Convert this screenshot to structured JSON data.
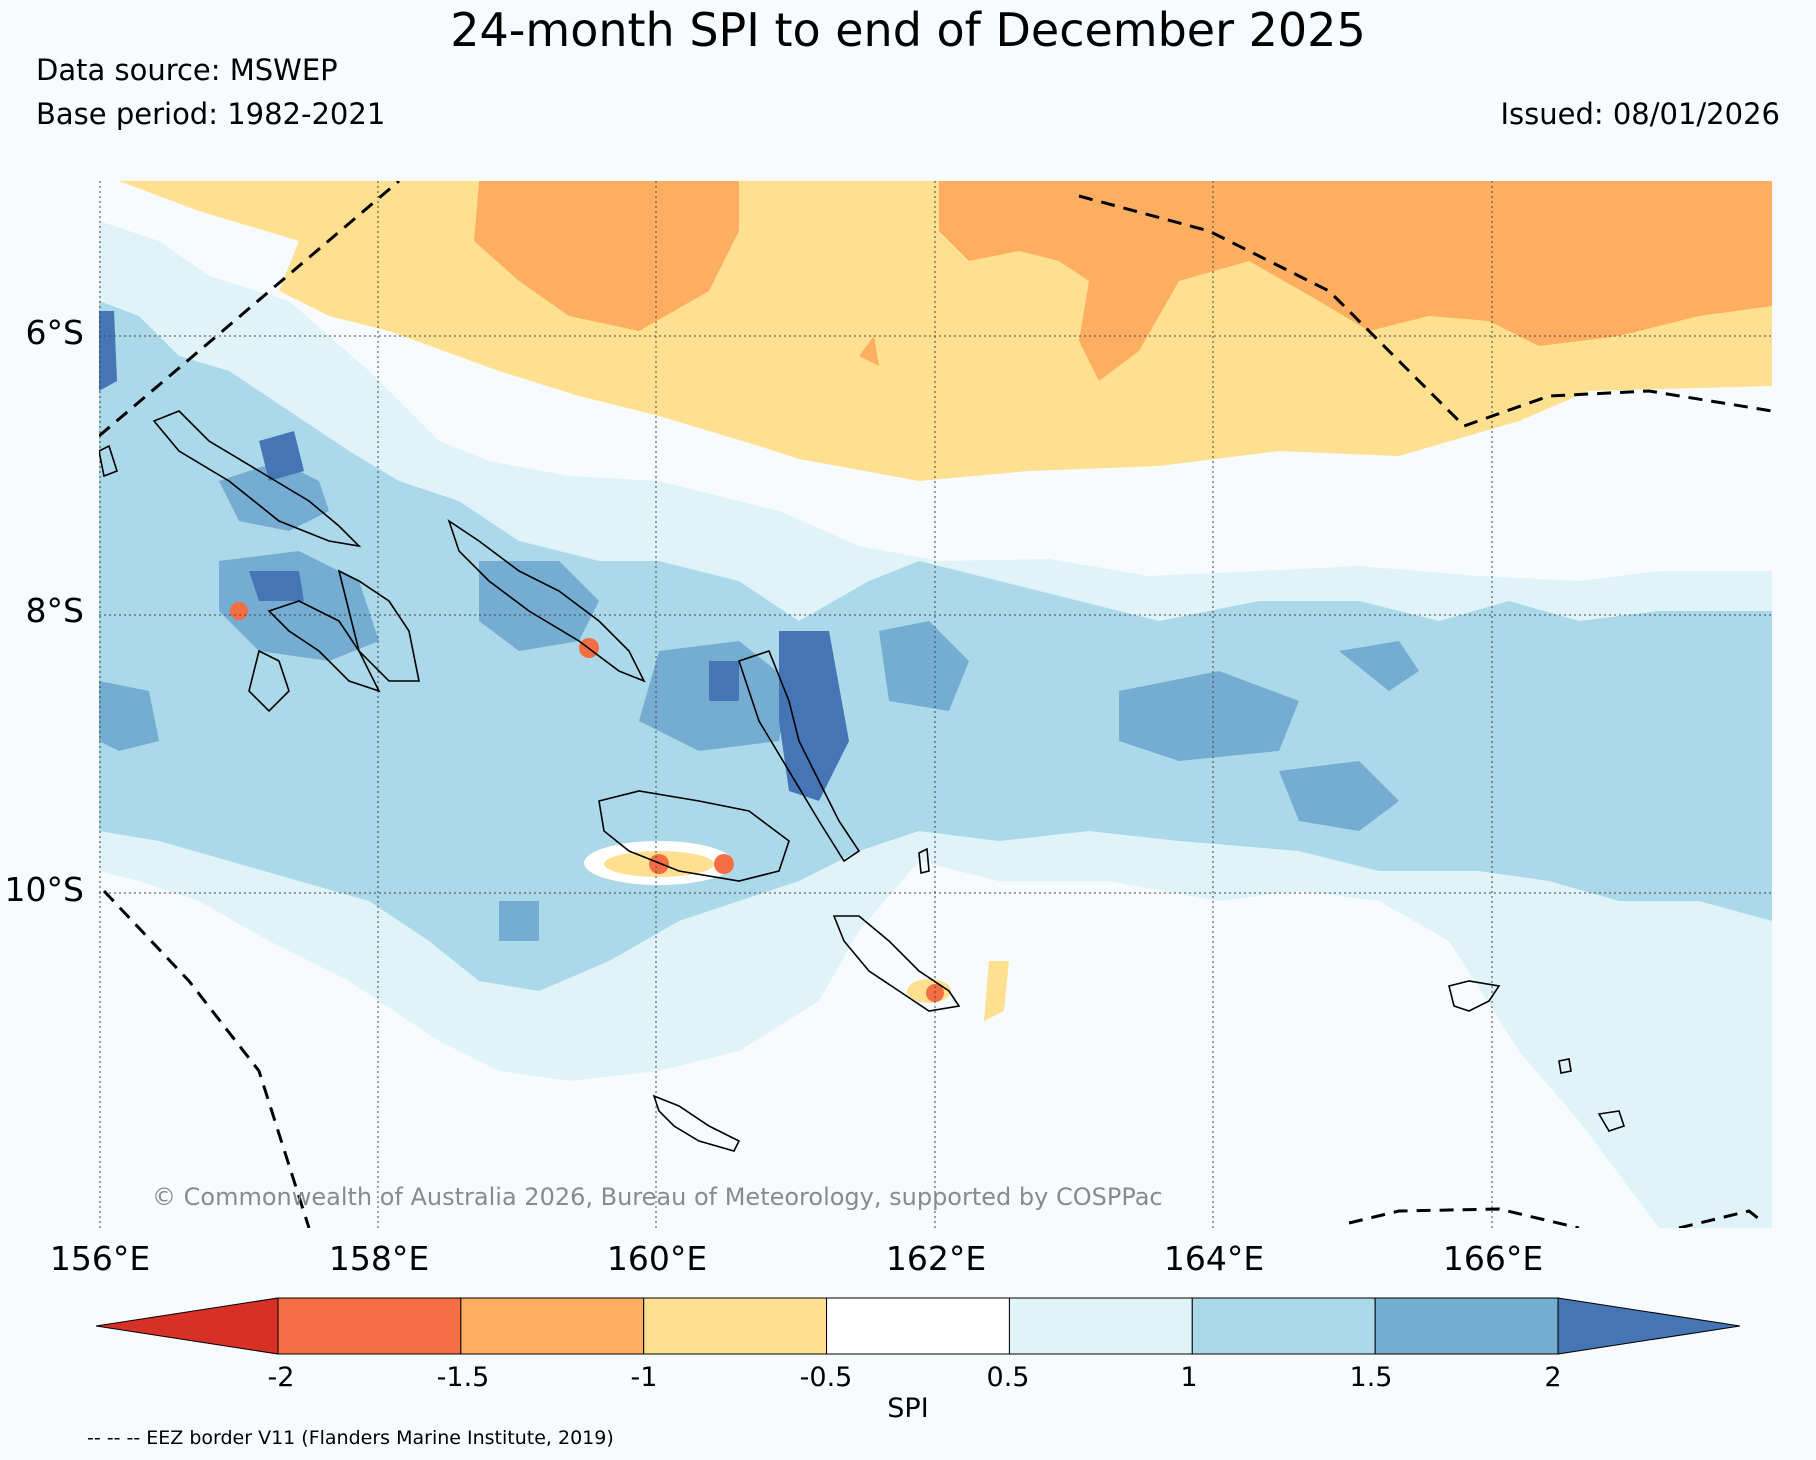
{
  "title": "24-month SPI to end of December 2025",
  "data_source": "Data source: MSWEP",
  "base_period": "Base period: 1982-2021",
  "issued": "Issued: 08/01/2026",
  "copyright": "© Commonwealth of Australia 2026, Bureau of Meteorology, supported by COSPPac",
  "footnote": "-- -- -- EEZ border V11 (Flanders Marine Institute, 2019)",
  "lat_ticks": [
    "6°S",
    "8°S",
    "10°S"
  ],
  "lon_ticks": [
    "156°E",
    "158°E",
    "160°E",
    "162°E",
    "164°E",
    "166°E"
  ],
  "colorbar": {
    "title": "SPI",
    "labels": [
      "-2",
      "-1.5",
      "-1",
      "-0.5",
      "0.5",
      "1",
      "1.5",
      "2"
    ],
    "colors": [
      "#d73027",
      "#f46d43",
      "#fdae61",
      "#fee090",
      "#ffffff",
      "#e0f3f8",
      "#abd9e9",
      "#74add1",
      "#4575b4"
    ]
  }
}
